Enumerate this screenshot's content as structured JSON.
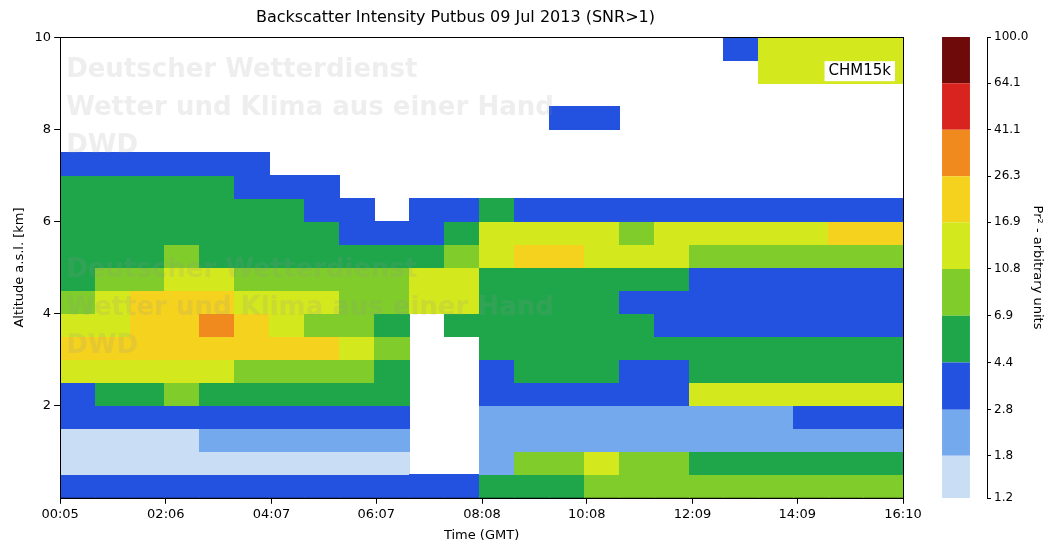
{
  "chart_data": {
    "type": "heatmap",
    "title": "Backscatter Intensity Putbus 09 Jul 2013 (SNR>1)",
    "x_label": "Time (GMT)",
    "y_label": "Altitude a.s.l. [km]",
    "annotations": [
      "CHM15k"
    ],
    "watermark": [
      "Deutscher Wetterdienst",
      "Wetter und Klima aus einer Hand",
      "DWD"
    ],
    "xlim": [
      5,
      970
    ],
    "xticks": [
      {
        "value": 5,
        "label": "00:05"
      },
      {
        "value": 126,
        "label": "02:06"
      },
      {
        "value": 247,
        "label": "04:07"
      },
      {
        "value": 367,
        "label": "06:07"
      },
      {
        "value": 488,
        "label": "08:08"
      },
      {
        "value": 608,
        "label": "10:08"
      },
      {
        "value": 729,
        "label": "12:09"
      },
      {
        "value": 849,
        "label": "14:09"
      },
      {
        "value": 970,
        "label": "16:10"
      }
    ],
    "ylim": [
      0,
      10
    ],
    "yticks": [
      2,
      4,
      6,
      8,
      10
    ],
    "grid": false,
    "cells": {
      "x_edges": [
        5,
        45,
        85,
        125,
        165,
        205,
        245,
        285,
        325,
        365,
        405,
        445,
        485,
        525,
        565,
        605,
        645,
        685,
        725,
        765,
        805,
        845,
        885,
        925,
        970
      ],
      "y_edges": [
        0,
        0.5,
        1,
        1.5,
        2,
        2.5,
        3,
        3.5,
        4,
        4.5,
        5,
        5.5,
        6,
        6.5,
        7,
        7.5,
        8,
        8.5,
        9,
        9.5,
        10
      ],
      "values": [
        [
          4,
          1.6,
          1.6,
          3,
          4,
          14,
          18,
          14,
          10,
          6,
          5,
          5,
          5,
          6,
          4,
          null,
          null,
          null,
          null,
          null
        ],
        [
          4,
          1.6,
          1.6,
          3,
          5,
          16,
          18,
          13,
          14,
          9,
          5,
          5,
          5,
          6,
          4,
          null,
          null,
          null,
          null,
          null
        ],
        [
          4,
          1.6,
          1.6,
          3.5,
          6,
          12,
          18,
          20,
          18,
          10,
          6,
          5,
          5,
          5,
          3.5,
          null,
          null,
          null,
          null,
          null
        ],
        [
          3.5,
          1.6,
          1.6,
          4,
          8,
          14,
          20,
          24,
          20,
          12,
          7,
          5,
          5,
          5,
          3.5,
          null,
          null,
          null,
          null,
          null
        ],
        [
          3.5,
          1.6,
          1.8,
          4,
          6,
          12,
          18,
          28,
          20,
          12,
          6,
          5,
          5,
          5,
          3.5,
          null,
          null,
          null,
          null,
          null
        ],
        [
          3.5,
          1.6,
          1.8,
          3.5,
          5,
          10,
          20,
          24,
          16,
          10,
          6,
          5,
          5,
          4,
          3,
          null,
          null,
          null,
          null,
          null
        ],
        [
          3.5,
          1.6,
          1.8,
          3.5,
          5,
          9,
          22,
          12,
          14,
          10,
          6,
          5,
          5,
          4,
          null,
          null,
          null,
          null,
          null,
          null
        ],
        [
          3.5,
          1.6,
          2,
          3.5,
          5,
          8,
          20,
          10,
          12,
          8,
          5,
          5,
          4,
          3.5,
          null,
          null,
          null,
          null,
          null,
          null
        ],
        [
          3.5,
          1.6,
          2,
          3,
          4.5,
          7,
          12,
          8,
          10,
          9,
          5,
          4,
          4,
          null,
          null,
          null,
          null,
          null,
          null,
          null
        ],
        [
          3,
          1.6,
          1.8,
          3,
          4.5,
          6,
          8,
          6,
          8,
          10,
          5,
          4,
          null,
          null,
          null,
          null,
          null,
          null,
          null,
          null
        ],
        [
          3,
          null,
          null,
          null,
          null,
          null,
          null,
          null,
          14,
          16,
          5,
          4,
          3.5,
          null,
          null,
          null,
          null,
          null,
          null,
          null
        ],
        [
          3,
          null,
          null,
          null,
          null,
          null,
          null,
          5,
          13,
          16,
          8,
          5,
          3.5,
          null,
          null,
          null,
          null,
          null,
          null,
          null
        ],
        [
          5,
          1.8,
          2,
          2.5,
          3,
          4,
          5,
          5,
          6,
          6,
          16,
          14,
          5,
          null,
          null,
          null,
          null,
          null,
          null,
          null
        ],
        [
          6,
          8,
          2.2,
          2.5,
          3,
          4.5,
          5,
          5,
          5,
          5,
          18,
          14,
          4,
          null,
          null,
          null,
          null,
          null,
          null,
          null
        ],
        [
          6,
          10,
          2.2,
          2.5,
          3,
          4.5,
          5,
          5,
          4.5,
          5,
          18,
          12,
          4,
          null,
          null,
          null,
          3,
          null,
          null,
          null
        ],
        [
          7,
          12,
          2.2,
          2.5,
          3,
          4.5,
          5,
          4.5,
          4.5,
          5,
          16,
          12,
          4,
          null,
          null,
          null,
          3,
          null,
          null,
          null
        ],
        [
          7,
          8,
          2.2,
          2.5,
          3,
          4,
          4.5,
          4.5,
          4,
          5,
          14,
          10,
          3.5,
          null,
          null,
          null,
          null,
          null,
          null,
          null
        ],
        [
          7,
          7,
          2.2,
          2.5,
          3.5,
          4,
          4.5,
          4,
          3.5,
          4.5,
          12,
          12,
          4,
          null,
          null,
          null,
          null,
          null,
          null,
          null
        ],
        [
          7,
          6,
          2.2,
          2.5,
          12,
          4.5,
          4.5,
          4,
          3.5,
          4,
          10,
          14,
          4,
          null,
          null,
          null,
          null,
          null,
          null,
          null
        ],
        [
          7,
          6,
          2.2,
          2.5,
          12,
          5,
          4.5,
          4,
          3.5,
          4,
          10,
          14,
          4,
          null,
          null,
          null,
          null,
          null,
          null,
          3.5
        ],
        [
          7,
          6,
          2.2,
          2.5,
          12,
          5,
          4.5,
          3.5,
          3.5,
          4,
          8,
          14,
          3.5,
          null,
          null,
          null,
          null,
          null,
          12,
          14
        ],
        [
          7,
          6,
          2.2,
          2.8,
          14,
          5,
          4.5,
          3.5,
          3.5,
          4,
          8,
          16,
          4,
          null,
          null,
          null,
          null,
          null,
          14,
          16
        ],
        [
          7,
          6,
          2.2,
          3,
          14,
          5,
          4.5,
          3.5,
          3.5,
          4,
          8,
          18,
          4,
          null,
          null,
          null,
          null,
          null,
          16,
          16
        ],
        [
          7,
          5,
          2.2,
          3.5,
          16,
          5,
          4.5,
          3.5,
          3.5,
          4,
          10,
          18,
          4,
          null,
          null,
          null,
          null,
          null,
          14,
          12
        ]
      ]
    },
    "colorbar": {
      "label": "Pr² - arbitrary units",
      "log": true,
      "range": [
        1.2,
        100
      ],
      "ticks": [
        1.2,
        1.8,
        2.8,
        4.4,
        6.9,
        10.8,
        16.9,
        26.3,
        41.1,
        64.1,
        {
          "value": 100,
          "label": "100.0"
        }
      ],
      "colors": [
        "#c9def5",
        "#74a9ee",
        "#2351e0",
        "#1fa64a",
        "#7fcc2a",
        "#d4e81e",
        "#f5d21e",
        "#f08a1e",
        "#d8231e",
        "#6e0a0a"
      ]
    }
  }
}
